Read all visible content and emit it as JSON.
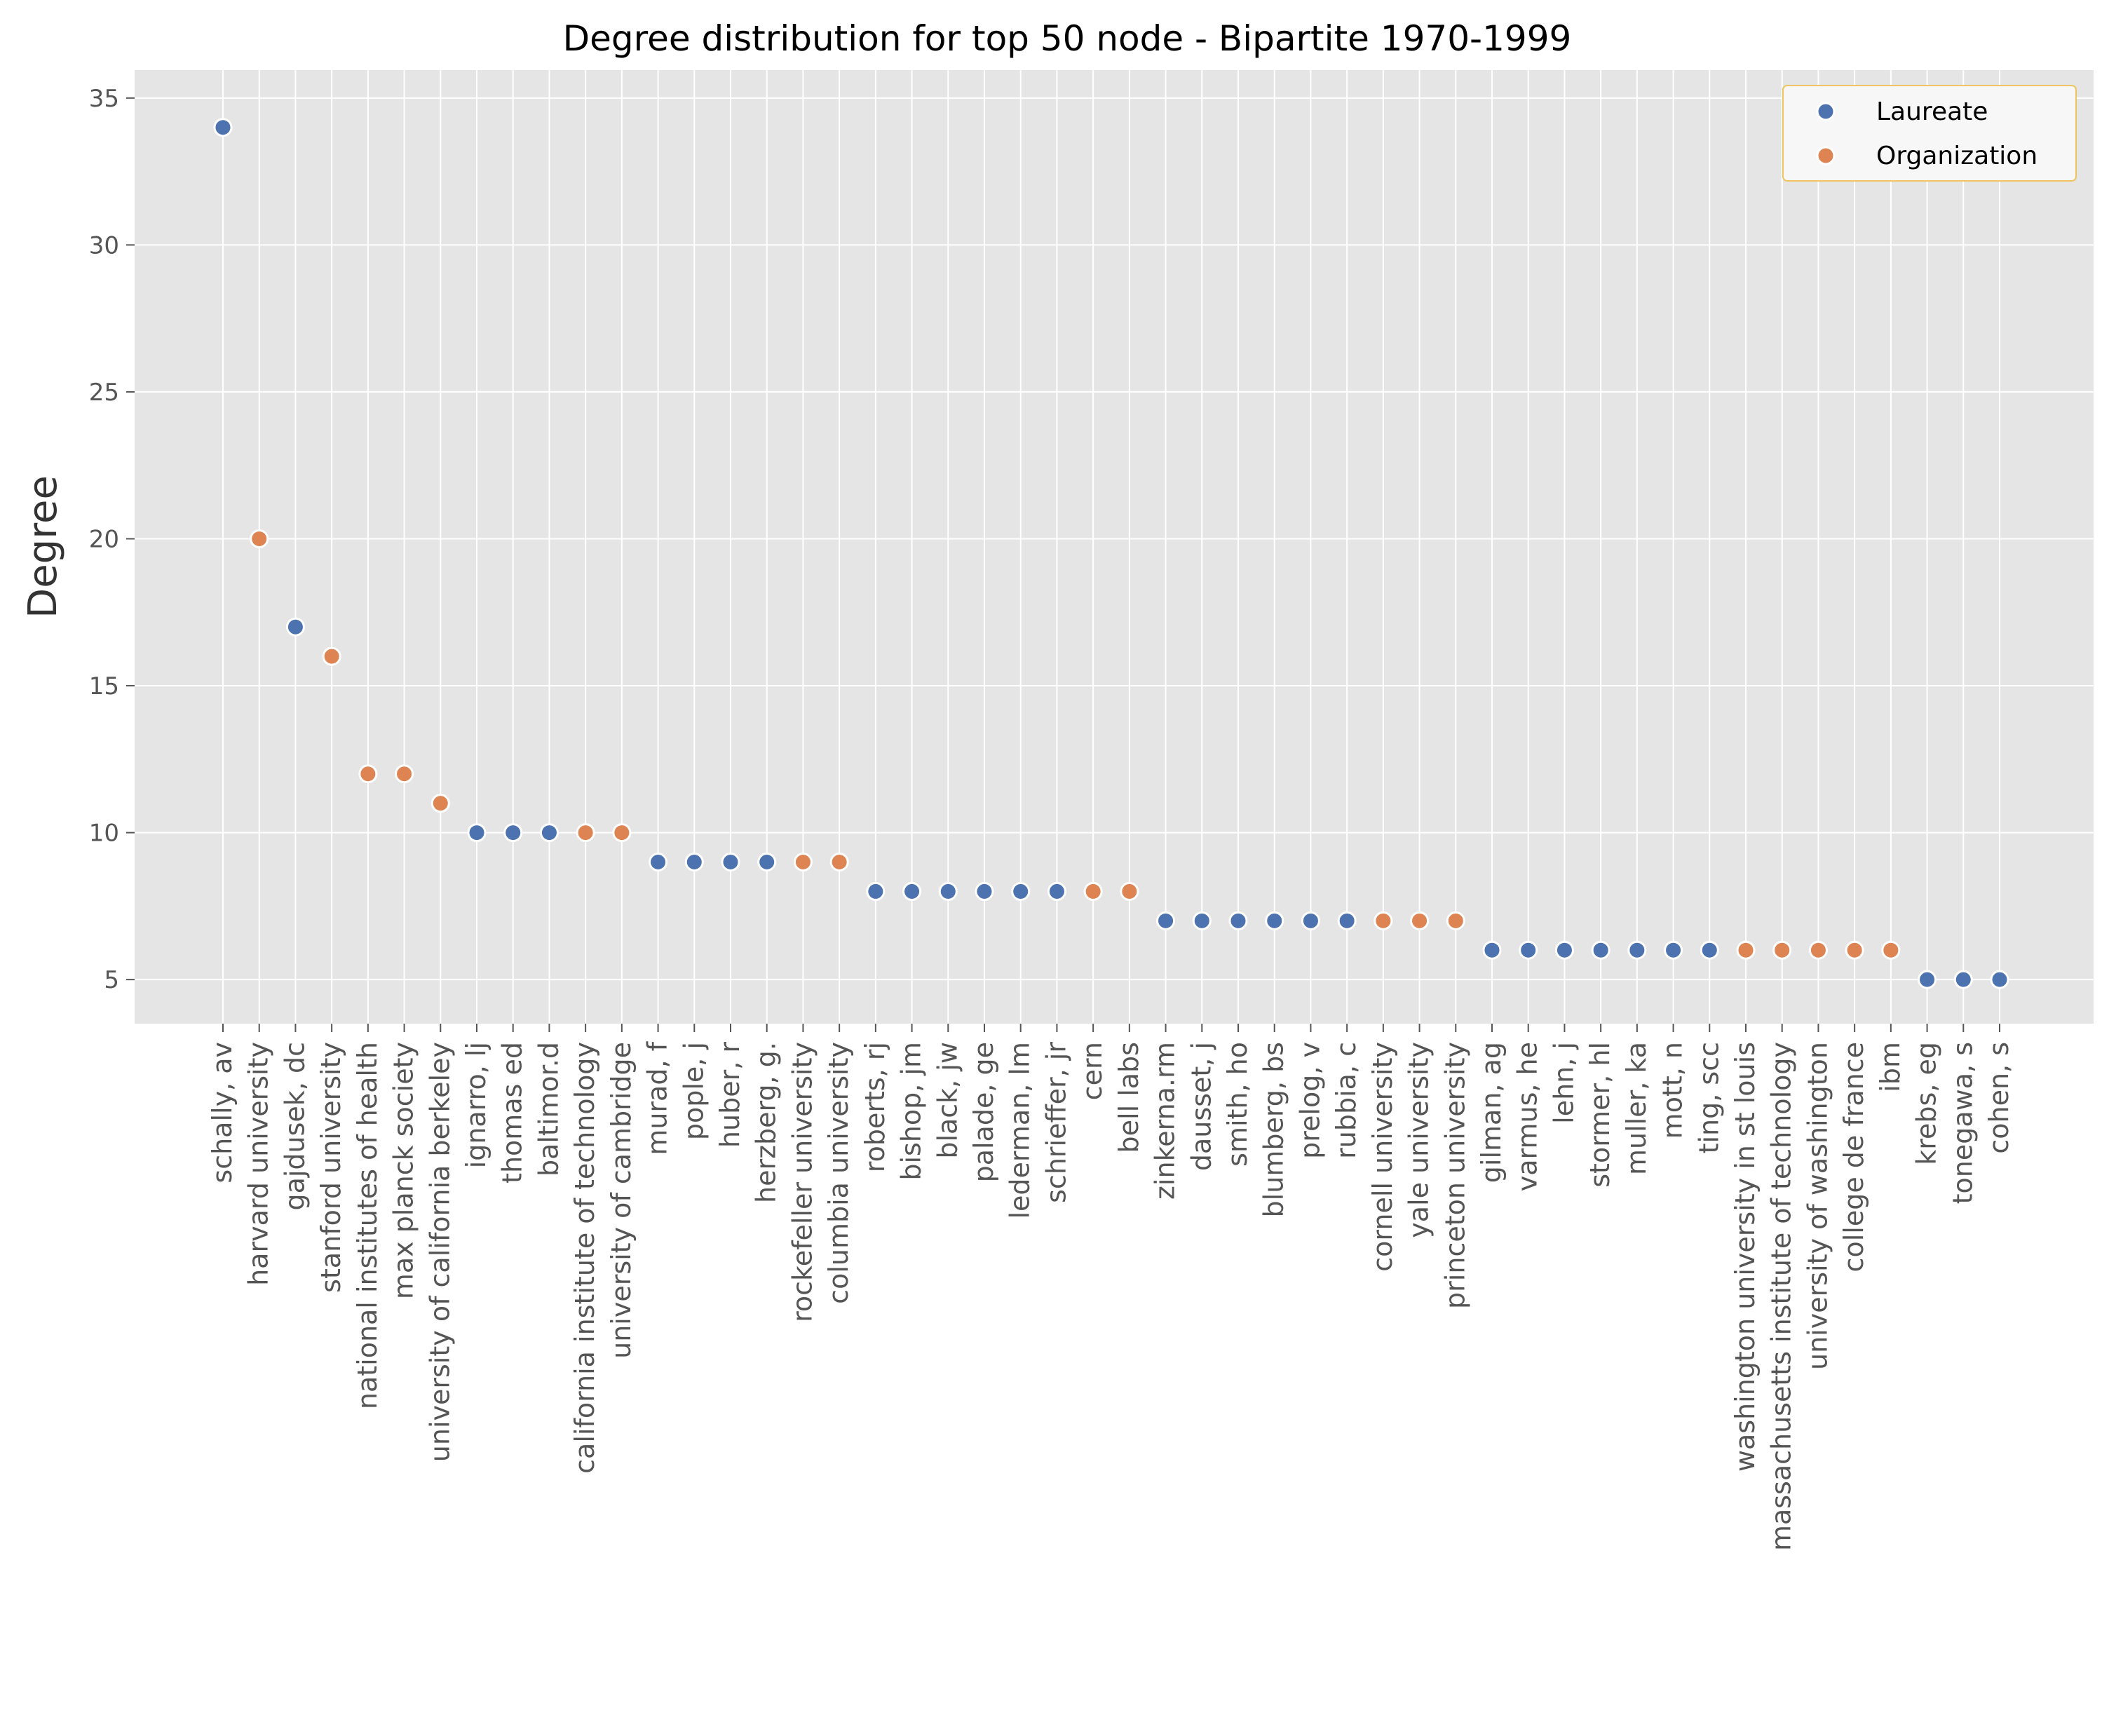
{
  "chart_data": {
    "type": "scatter",
    "title": "Degree distribution for top 50 node - Bipartite 1970-1999",
    "xlabel": "",
    "ylabel": "Degree",
    "ylim": [
      3.5,
      35.95
    ],
    "yticks": [
      5,
      10,
      15,
      20,
      25,
      30,
      35
    ],
    "grid": true,
    "legend_position": "top-right",
    "series": [
      {
        "name": "Laureate",
        "color": "#4c72b0"
      },
      {
        "name": "Organization",
        "color": "#dd8452"
      }
    ],
    "points": [
      {
        "label": "schally, av",
        "value": 34,
        "series": "Laureate"
      },
      {
        "label": "harvard university",
        "value": 20,
        "series": "Organization"
      },
      {
        "label": "gajdusek, dc",
        "value": 17,
        "series": "Laureate"
      },
      {
        "label": "stanford university",
        "value": 16,
        "series": "Organization"
      },
      {
        "label": "national institutes of health",
        "value": 12,
        "series": "Organization"
      },
      {
        "label": "max planck society",
        "value": 12,
        "series": "Organization"
      },
      {
        "label": "university of california berkeley",
        "value": 11,
        "series": "Organization"
      },
      {
        "label": "ignarro, lj",
        "value": 10,
        "series": "Laureate"
      },
      {
        "label": "thomas ed",
        "value": 10,
        "series": "Laureate"
      },
      {
        "label": "baltimor.d",
        "value": 10,
        "series": "Laureate"
      },
      {
        "label": "california institute of technology",
        "value": 10,
        "series": "Organization"
      },
      {
        "label": "university of cambridge",
        "value": 10,
        "series": "Organization"
      },
      {
        "label": "murad, f",
        "value": 9,
        "series": "Laureate"
      },
      {
        "label": "pople, j",
        "value": 9,
        "series": "Laureate"
      },
      {
        "label": "huber, r",
        "value": 9,
        "series": "Laureate"
      },
      {
        "label": "herzberg, g.",
        "value": 9,
        "series": "Laureate"
      },
      {
        "label": "rockefeller university",
        "value": 9,
        "series": "Organization"
      },
      {
        "label": "columbia university",
        "value": 9,
        "series": "Organization"
      },
      {
        "label": "roberts, rj",
        "value": 8,
        "series": "Laureate"
      },
      {
        "label": "bishop, jm",
        "value": 8,
        "series": "Laureate"
      },
      {
        "label": "black, jw",
        "value": 8,
        "series": "Laureate"
      },
      {
        "label": "palade, ge",
        "value": 8,
        "series": "Laureate"
      },
      {
        "label": "lederman, lm",
        "value": 8,
        "series": "Laureate"
      },
      {
        "label": "schrieffer, jr",
        "value": 8,
        "series": "Laureate"
      },
      {
        "label": "cern",
        "value": 8,
        "series": "Organization"
      },
      {
        "label": "bell labs",
        "value": 8,
        "series": "Organization"
      },
      {
        "label": "zinkerna.rm",
        "value": 7,
        "series": "Laureate"
      },
      {
        "label": "dausset, j",
        "value": 7,
        "series": "Laureate"
      },
      {
        "label": "smith, ho",
        "value": 7,
        "series": "Laureate"
      },
      {
        "label": "blumberg, bs",
        "value": 7,
        "series": "Laureate"
      },
      {
        "label": "prelog, v",
        "value": 7,
        "series": "Laureate"
      },
      {
        "label": "rubbia, c",
        "value": 7,
        "series": "Laureate"
      },
      {
        "label": "cornell university",
        "value": 7,
        "series": "Organization"
      },
      {
        "label": "yale university",
        "value": 7,
        "series": "Organization"
      },
      {
        "label": "princeton university",
        "value": 7,
        "series": "Organization"
      },
      {
        "label": "gilman, ag",
        "value": 6,
        "series": "Laureate"
      },
      {
        "label": "varmus, he",
        "value": 6,
        "series": "Laureate"
      },
      {
        "label": "lehn, j",
        "value": 6,
        "series": "Laureate"
      },
      {
        "label": "stormer, hl",
        "value": 6,
        "series": "Laureate"
      },
      {
        "label": "muller, ka",
        "value": 6,
        "series": "Laureate"
      },
      {
        "label": "mott, n",
        "value": 6,
        "series": "Laureate"
      },
      {
        "label": "ting, scc",
        "value": 6,
        "series": "Laureate"
      },
      {
        "label": "washington university in st louis",
        "value": 6,
        "series": "Organization"
      },
      {
        "label": "massachusetts institute of technology",
        "value": 6,
        "series": "Organization"
      },
      {
        "label": "university of washington",
        "value": 6,
        "series": "Organization"
      },
      {
        "label": "college de france",
        "value": 6,
        "series": "Organization"
      },
      {
        "label": "ibm",
        "value": 6,
        "series": "Organization"
      },
      {
        "label": "krebs, eg",
        "value": 5,
        "series": "Laureate"
      },
      {
        "label": "tonegawa, s",
        "value": 5,
        "series": "Laureate"
      },
      {
        "label": "cohen, s",
        "value": 5,
        "series": "Laureate"
      }
    ]
  }
}
